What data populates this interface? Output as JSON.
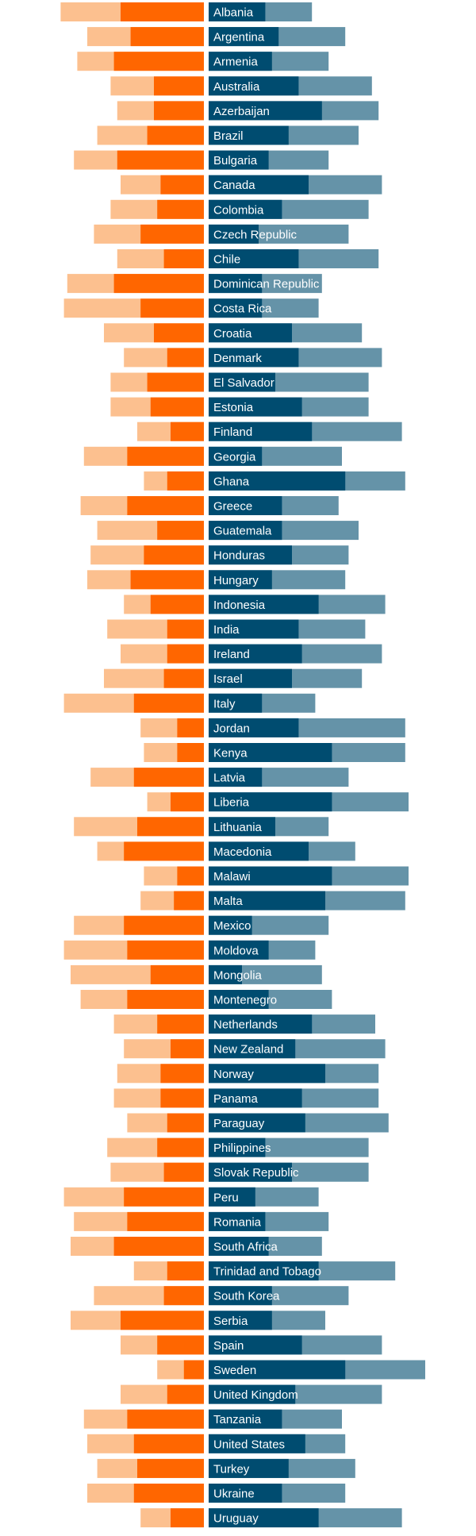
{
  "colors": {
    "left_light": "#fcc08f",
    "left_dark": "#ff6600",
    "right_dark": "#004c70",
    "right_light": "#6593a8",
    "label": "#ffffff",
    "background": "#ffffff"
  },
  "chart_data": {
    "type": "bar",
    "layout": "diverging stacked horizontal bars",
    "axis_range": {
      "left": [
        0,
        100
      ],
      "right": [
        0,
        100
      ]
    },
    "grid": false,
    "legend": "none",
    "categories": [
      "Albania",
      "Argentina",
      "Armenia",
      "Australia",
      "Azerbaijan",
      "Brazil",
      "Bulgaria",
      "Canada",
      "Colombia",
      "Czech Republic",
      "Chile",
      "Dominican Republic",
      "Costa Rica",
      "Croatia",
      "Denmark",
      "El Salvador",
      "Estonia",
      "Finland",
      "Georgia",
      "Ghana",
      "Greece",
      "Guatemala",
      "Honduras",
      "Hungary",
      "Indonesia",
      "India",
      "Ireland",
      "Israel",
      "Italy",
      "Jordan",
      "Kenya",
      "Latvia",
      "Liberia",
      "Lithuania",
      "Macedonia",
      "Malawi",
      "Malta",
      "Mexico",
      "Moldova",
      "Mongolia",
      "Montenegro",
      "Netherlands",
      "New Zealand",
      "Norway",
      "Panama",
      "Paraguay",
      "Philippines",
      "Slovak Republic",
      "Peru",
      "Romania",
      "South Africa",
      "Trinidad and Tobago",
      "South Korea",
      "Serbia",
      "Spain",
      "Sweden",
      "United Kingdom",
      "Tanzania",
      "United States",
      "Turkey",
      "Ukraine",
      "Uruguay"
    ],
    "series": [
      {
        "side": "left",
        "shade": "light",
        "values": [
          43,
          35,
          38,
          28,
          26,
          32,
          39,
          25,
          28,
          33,
          26,
          41,
          42,
          30,
          24,
          28,
          28,
          20,
          36,
          18,
          37,
          32,
          34,
          35,
          24,
          29,
          25,
          30,
          42,
          19,
          18,
          34,
          17,
          39,
          32,
          18,
          19,
          39,
          42,
          40,
          37,
          27,
          24,
          26,
          27,
          23,
          29,
          28,
          42,
          39,
          40,
          21,
          33,
          40,
          25,
          14,
          25,
          36,
          35,
          32,
          35,
          19
        ]
      },
      {
        "side": "left",
        "shade": "dark",
        "values": [
          25,
          22,
          27,
          15,
          15,
          17,
          26,
          13,
          14,
          19,
          12,
          27,
          19,
          15,
          11,
          17,
          16,
          10,
          23,
          11,
          23,
          14,
          18,
          22,
          16,
          11,
          11,
          12,
          21,
          8,
          8,
          21,
          10,
          20,
          24,
          8,
          9,
          24,
          23,
          16,
          23,
          14,
          10,
          13,
          13,
          11,
          14,
          12,
          24,
          23,
          27,
          11,
          12,
          25,
          14,
          6,
          11,
          23,
          21,
          20,
          21,
          10
        ]
      },
      {
        "side": "right",
        "shade": "dark",
        "values": [
          17,
          21,
          19,
          27,
          34,
          24,
          18,
          30,
          22,
          15,
          27,
          16,
          16,
          25,
          27,
          20,
          28,
          31,
          16,
          41,
          22,
          22,
          25,
          19,
          33,
          27,
          28,
          25,
          16,
          27,
          37,
          16,
          37,
          20,
          30,
          37,
          35,
          13,
          18,
          10,
          18,
          31,
          26,
          35,
          28,
          29,
          17,
          25,
          14,
          17,
          18,
          33,
          19,
          19,
          28,
          41,
          26,
          22,
          29,
          24,
          22,
          33
        ]
      },
      {
        "side": "right",
        "shade": "light",
        "values": [
          31,
          41,
          36,
          49,
          51,
          45,
          36,
          52,
          48,
          42,
          51,
          34,
          33,
          46,
          52,
          48,
          48,
          58,
          40,
          59,
          39,
          45,
          42,
          41,
          53,
          47,
          52,
          46,
          32,
          59,
          59,
          42,
          60,
          36,
          44,
          60,
          59,
          36,
          32,
          34,
          37,
          50,
          53,
          51,
          51,
          54,
          48,
          48,
          33,
          36,
          34,
          56,
          42,
          35,
          52,
          65,
          52,
          40,
          41,
          44,
          41,
          58
        ]
      }
    ]
  }
}
